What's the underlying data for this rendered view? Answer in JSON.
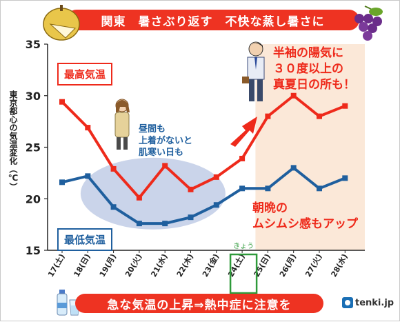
{
  "header": {
    "title": "関東　暑さぶり返す　不快な蒸し暑さに"
  },
  "footer": {
    "message": "急な気温の上昇⇒熱中症に注意を",
    "brand": "tenki.jp"
  },
  "annotations": {
    "cool_days": "昼間も\n上着がないと\n肌寒い日も",
    "hot_days": "半袖の陽気に\n３０度以上の\n真夏日の所も！",
    "humid": "朝晩の\nムシムシ感もアップ",
    "today": "きょう"
  },
  "colors": {
    "max": "#ee2a1b",
    "min": "#1f5f9e",
    "shade_warm": "#fbe8d8",
    "shade_cool": "#9fb1d9",
    "today_box": "#2e9a3a"
  },
  "chart_data": {
    "type": "line",
    "categories": [
      "17(土)",
      "18(日)",
      "19(月)",
      "20(火)",
      "21(水)",
      "22(木)",
      "23(金)",
      "24(土)",
      "25(日)",
      "26(月)",
      "27(火)",
      "28(水)"
    ],
    "series": [
      {
        "name": "最高気温",
        "values": [
          29.4,
          26.9,
          22.9,
          20.1,
          23.2,
          20.9,
          22.1,
          23.9,
          28.0,
          30.0,
          28.0,
          29.0
        ]
      },
      {
        "name": "最低気温",
        "values": [
          21.6,
          22.2,
          19.2,
          17.6,
          17.6,
          18.2,
          19.4,
          21.0,
          21.0,
          23.0,
          21.0,
          22.0
        ]
      }
    ],
    "yticks": [
      15,
      20,
      25,
      30,
      35
    ],
    "ylim": [
      15,
      35
    ],
    "ylabel": "東京都心の気温変化（℃）",
    "xlabel": "",
    "title": "関東　暑さぶり返す　不快な蒸し暑さに",
    "today_index": 7,
    "grid": false
  }
}
